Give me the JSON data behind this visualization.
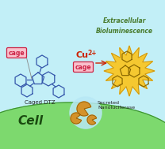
{
  "bg_color": "#c2eff7",
  "cell_color": "#7dd96e",
  "cell_edge": "#3a9030",
  "title_text": "Extracellular\nBioluminescence",
  "title_color": "#4a7c2f",
  "cage_label": "cage",
  "cage_bg": "#f9c0cc",
  "cage_border": "#cc2244",
  "cu_text": "Cu",
  "cu_super": "2+",
  "cu_color": "#cc2200",
  "caged_dtz_label": "Caged DTZ",
  "secreted_label": "Secreted\nNanoluciferase",
  "cell_label": "Cell",
  "cell_label_color": "#1a4a10",
  "molecule_color": "#3355aa",
  "glow_color": "#f5c830",
  "glow_edge": "#c89010",
  "molecule2_color": "#886600",
  "enzyme_color": "#d4922a",
  "enzyme_edge": "#8a5500",
  "figsize": [
    2.08,
    1.89
  ],
  "dpi": 100
}
